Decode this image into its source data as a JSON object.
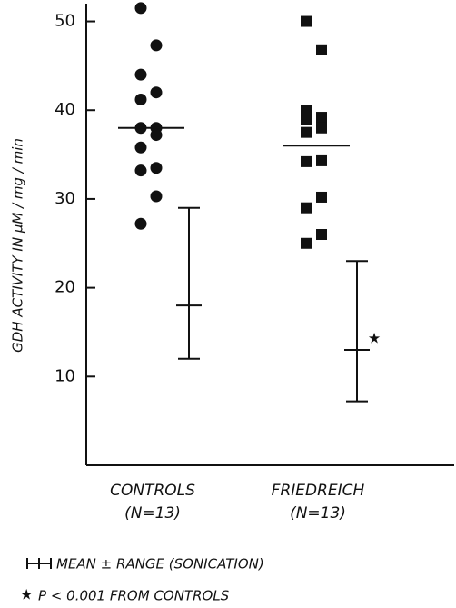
{
  "chart_data": {
    "type": "dot-plot",
    "y_label": "GDH ACTIVITY IN μM / mg / min",
    "ylim": [
      0,
      52
    ],
    "yticks": [
      10,
      20,
      30,
      40,
      50
    ],
    "groups": [
      {
        "label": "CONTROLS",
        "n_label": "(N=13)",
        "marker": "circle",
        "color": "#111111",
        "values": [
          51.5,
          47.3,
          44,
          42,
          41.2,
          38,
          38,
          37.2,
          35.8,
          33.5,
          33.2,
          30.3,
          27.2
        ],
        "mean": 38,
        "sonication": {
          "mean": 18,
          "min": 12,
          "max": 29
        }
      },
      {
        "label": "FRIEDREICH",
        "n_label": "(N=13)",
        "marker": "square",
        "color": "#111111",
        "values": [
          50,
          46.8,
          40,
          39.2,
          39,
          38,
          37.5,
          34.3,
          34.2,
          30.2,
          29,
          26,
          25
        ],
        "mean": 36,
        "sonication": {
          "mean": 13,
          "min": 7.2,
          "max": 23
        },
        "significant": true
      }
    ],
    "legend_label": "MEAN ± RANGE (SONICATION)",
    "significance_mark": "★",
    "footnote": "P < 0.001 FROM CONTROLS"
  }
}
